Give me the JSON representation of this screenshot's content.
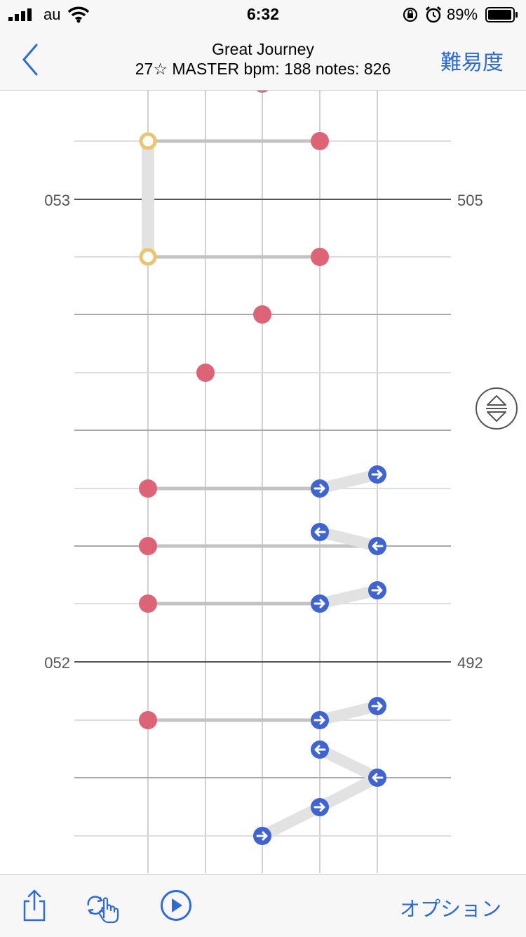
{
  "status_bar": {
    "carrier": "au",
    "time": "6:32",
    "battery": "89%"
  },
  "nav": {
    "title": "Great Journey",
    "subtitle": "27☆ MASTER bpm: 188 notes: 826",
    "right_button": "難易度",
    "back_icon": "chevron-left-icon"
  },
  "measures": {
    "upper": {
      "left": "053",
      "right": "505"
    },
    "lower": {
      "left": "052",
      "right": "492"
    }
  },
  "toolbar": {
    "option_label": "オプション",
    "icons": [
      "share-icon",
      "rotate-hand-icon",
      "play-icon"
    ]
  },
  "colors": {
    "accent": "#2f6bd6",
    "tap_note": "#dd6477",
    "hold_note": "#e8c56e",
    "flick_note": "#3f63cf",
    "connector": "#c3c3c3"
  }
}
